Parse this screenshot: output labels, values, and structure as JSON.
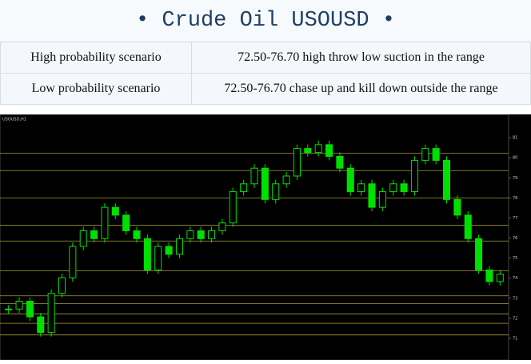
{
  "header": {
    "title": "• Crude Oil USOUSD •"
  },
  "table": {
    "rows": [
      [
        "High probability scenario",
        "72.50-76.70 high throw low suction in the range"
      ],
      [
        "Low  probability  scenario",
        "72.50-76.70 chase up and kill down outside the range"
      ]
    ]
  },
  "chart_data": {
    "type": "candlestick",
    "subtitle": "USOUSD,H1",
    "values": [
      72.46,
      72.85,
      72.07,
      71.29,
      73.24,
      74.02,
      75.58,
      76.36,
      75.97,
      77.53,
      77.14,
      76.36,
      75.97,
      74.41,
      75.58,
      75.19,
      75.97,
      76.36,
      75.97,
      76.36,
      76.75,
      78.31,
      78.7,
      79.48,
      77.92,
      78.7,
      79.09,
      80.46,
      80.26,
      80.65,
      80.07,
      79.48,
      78.31,
      78.7,
      77.53,
      78.31,
      78.7,
      78.31,
      79.87,
      80.46,
      79.87,
      77.92,
      77.14,
      75.97,
      74.41,
      73.83,
      74.2
    ],
    "color": "#00e000",
    "levels": [
      80.22,
      79.36,
      77.99,
      76.63,
      75.85,
      74.37,
      73.12,
      72.73,
      72.22,
      71.75,
      71.17
    ],
    "level_color": "#a89a3a",
    "ylim": [
      70.2,
      82.0
    ],
    "yticks": [
      71,
      72,
      73,
      74,
      75,
      76,
      77,
      78,
      79,
      80,
      81
    ]
  }
}
